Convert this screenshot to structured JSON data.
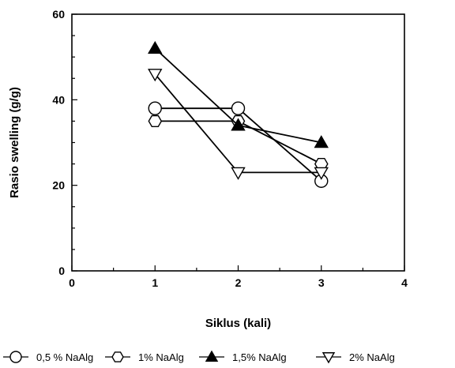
{
  "chart_data": {
    "type": "line",
    "title": "",
    "xlabel": "Siklus (kali)",
    "ylabel": "Rasio swelling (g/g)",
    "xlim": [
      0,
      4
    ],
    "ylim": [
      0,
      60
    ],
    "xticks": [
      0,
      1,
      2,
      3,
      4
    ],
    "yticks": [
      0,
      20,
      40,
      60
    ],
    "grid": false,
    "legend_position": "bottom",
    "series": [
      {
        "name": "0,5 % NaAlg",
        "marker": "circle",
        "filled": false,
        "color": "#000000",
        "line_color": "#000000",
        "x": [
          1,
          2,
          3
        ],
        "y": [
          38,
          38,
          21
        ]
      },
      {
        "name": "1% NaAlg",
        "marker": "hexagon",
        "filled": false,
        "color": "#000000",
        "line_color": "#000000",
        "x": [
          1,
          2,
          3
        ],
        "y": [
          35,
          35,
          25
        ]
      },
      {
        "name": "1,5% NaAlg",
        "marker": "triangle-up",
        "filled": true,
        "color": "#000000",
        "line_color": "#000000",
        "x": [
          1,
          2,
          3
        ],
        "y": [
          52,
          34,
          30
        ]
      },
      {
        "name": "2% NaAlg",
        "marker": "triangle-down",
        "filled": false,
        "color": "#000000",
        "line_color": "#000000",
        "x": [
          1,
          2,
          3
        ],
        "y": [
          46,
          23,
          23
        ]
      }
    ]
  }
}
